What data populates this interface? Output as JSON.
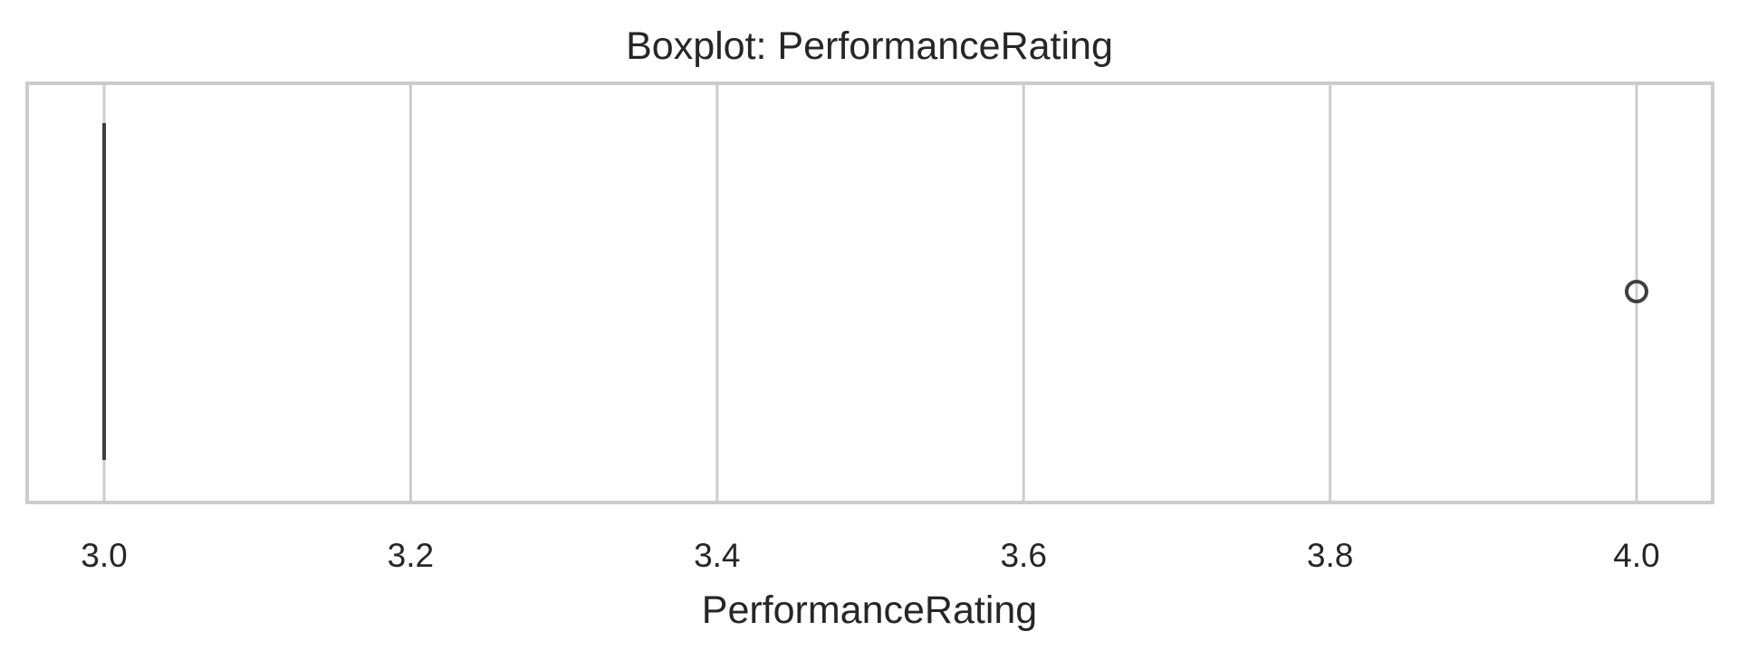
{
  "chart_data": {
    "type": "box",
    "title": "Boxplot: PerformanceRating",
    "xlabel": "PerformanceRating",
    "ylabel": "",
    "xlim": [
      2.975,
      4.037
    ],
    "xticks": [
      3.0,
      3.2,
      3.4,
      3.6,
      3.8,
      4.0
    ],
    "xtick_labels": [
      "3.0",
      "3.2",
      "3.4",
      "3.6",
      "3.8",
      "4.0"
    ],
    "grid": true,
    "orientation": "horizontal",
    "box": {
      "q1": 3.0,
      "median": 3.0,
      "q3": 3.0,
      "whisker_low": 3.0,
      "whisker_high": 3.0
    },
    "outliers": [
      4.0
    ]
  },
  "colors": {
    "box_line": "#3f3f3f",
    "grid": "#cccccc",
    "spine": "#cccccc",
    "text": "#262626"
  }
}
